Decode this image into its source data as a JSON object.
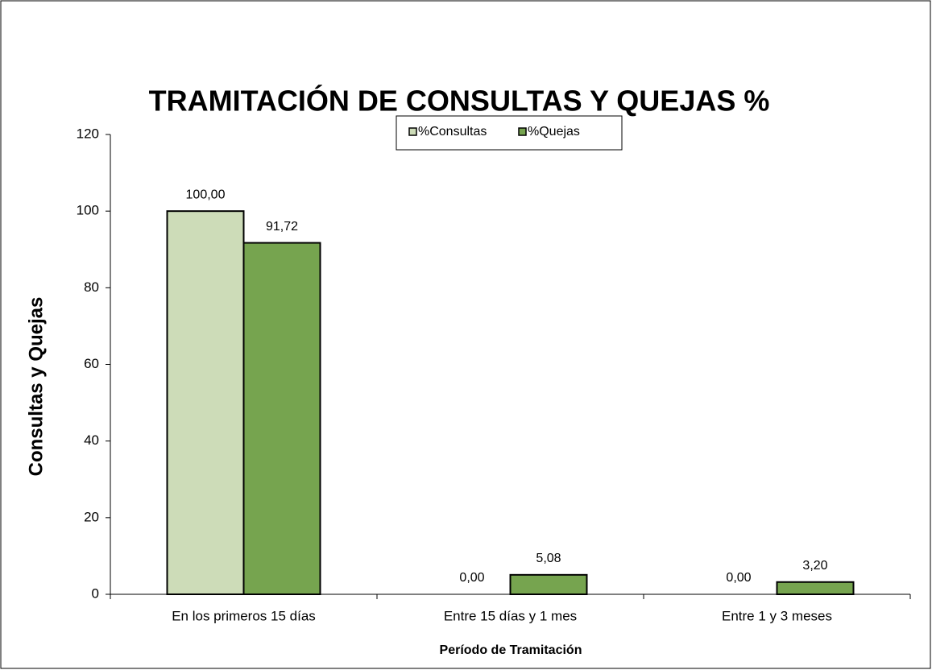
{
  "chart_data": {
    "type": "bar",
    "title": "TRAMITACIÓN DE CONSULTAS Y QUEJAS %",
    "x_label": "Período de Tramitación",
    "y_label": "Consultas y Quejas",
    "categories": [
      "En los primeros 15 días",
      "Entre 15 días y 1 mes",
      "Entre 1 y 3 meses"
    ],
    "series": [
      {
        "name": "%Consultas",
        "color": "#cddcb8",
        "values": [
          100,
          0,
          0
        ],
        "value_labels": [
          "100,00",
          "0,00",
          "0,00"
        ]
      },
      {
        "name": "%Quejas",
        "color": "#76a44f",
        "values": [
          91.72,
          5.08,
          3.2
        ],
        "value_labels": [
          "91,72",
          "5,08",
          "3,20"
        ]
      }
    ],
    "ylim": [
      0,
      120
    ],
    "yticks": [
      0,
      20,
      40,
      60,
      80,
      100,
      120
    ],
    "grid": false,
    "legend": "top"
  }
}
